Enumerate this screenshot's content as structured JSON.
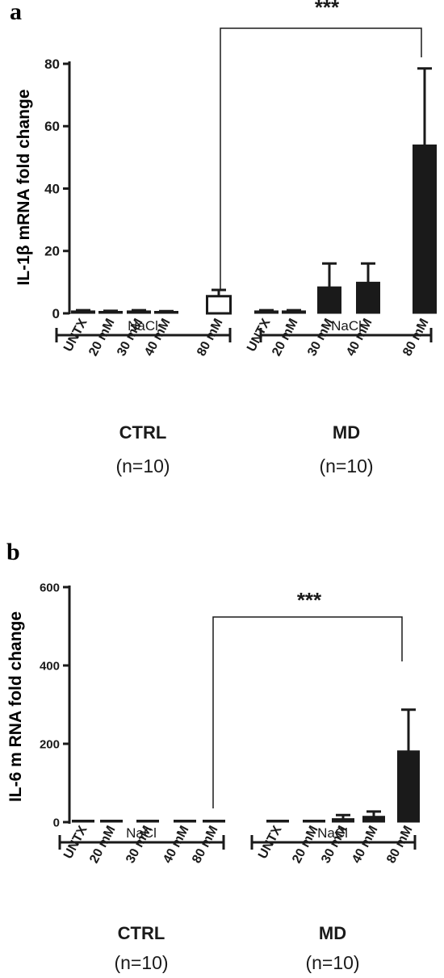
{
  "chart_data": [
    {
      "type": "bar",
      "panel_label": "a",
      "ylabel": "IL-1β mRNA  fold change",
      "ylim": [
        0,
        80
      ],
      "yticks": [
        "0",
        "20",
        "40",
        "60",
        "80"
      ],
      "categories": [
        "UNTX",
        "20 mM",
        "30 mM",
        "40 mM",
        "80 mM",
        "UNTX",
        "20 mM",
        "30 mM",
        "40 mM",
        "80 mM"
      ],
      "values": [
        0.8,
        0.6,
        0.8,
        0.5,
        5.5,
        0.8,
        0.8,
        8.5,
        10,
        54
      ],
      "errors": [
        0.2,
        0.2,
        0.2,
        0.2,
        2,
        0.2,
        0.2,
        7.5,
        6,
        24.5
      ],
      "fills": [
        "#1a1a1a",
        "#1a1a1a",
        "#1a1a1a",
        "#1a1a1a",
        "#ffffff",
        "#1a1a1a",
        "#1a1a1a",
        "#1a1a1a",
        "#1a1a1a",
        "#1a1a1a"
      ],
      "groups": [
        {
          "name": "CTRL",
          "n": "(n=10)",
          "salt": "NaCl"
        },
        {
          "name": "MD",
          "n": "(n=10)",
          "salt": "NaCl"
        }
      ],
      "significance": "***"
    },
    {
      "type": "bar",
      "panel_label": "b",
      "ylabel": "IL-6 m RNA  fold change",
      "ylim": [
        0,
        600
      ],
      "yticks": [
        "0",
        "200",
        "400",
        "600"
      ],
      "categories": [
        "UNTX",
        "20 mM",
        "30 mM",
        "40 mM",
        "80 mM",
        "UNTX",
        "20 mM",
        "30 mM",
        "40 mM",
        "80 mM"
      ],
      "values": [
        1,
        1,
        1,
        1,
        1,
        1,
        1,
        9,
        15,
        182
      ],
      "errors": [
        0,
        0,
        0,
        0,
        0,
        0,
        0,
        9,
        12,
        105
      ],
      "fills": [
        "#1a1a1a",
        "#1a1a1a",
        "#1a1a1a",
        "#1a1a1a",
        "#1a1a1a",
        "#1a1a1a",
        "#1a1a1a",
        "#1a1a1a",
        "#1a1a1a",
        "#1a1a1a"
      ],
      "groups": [
        {
          "name": "CTRL",
          "n": "(n=10)",
          "salt": "NaCl"
        },
        {
          "name": "MD",
          "n": "(n=10)",
          "salt": "NaCl"
        }
      ],
      "significance": "***"
    }
  ]
}
